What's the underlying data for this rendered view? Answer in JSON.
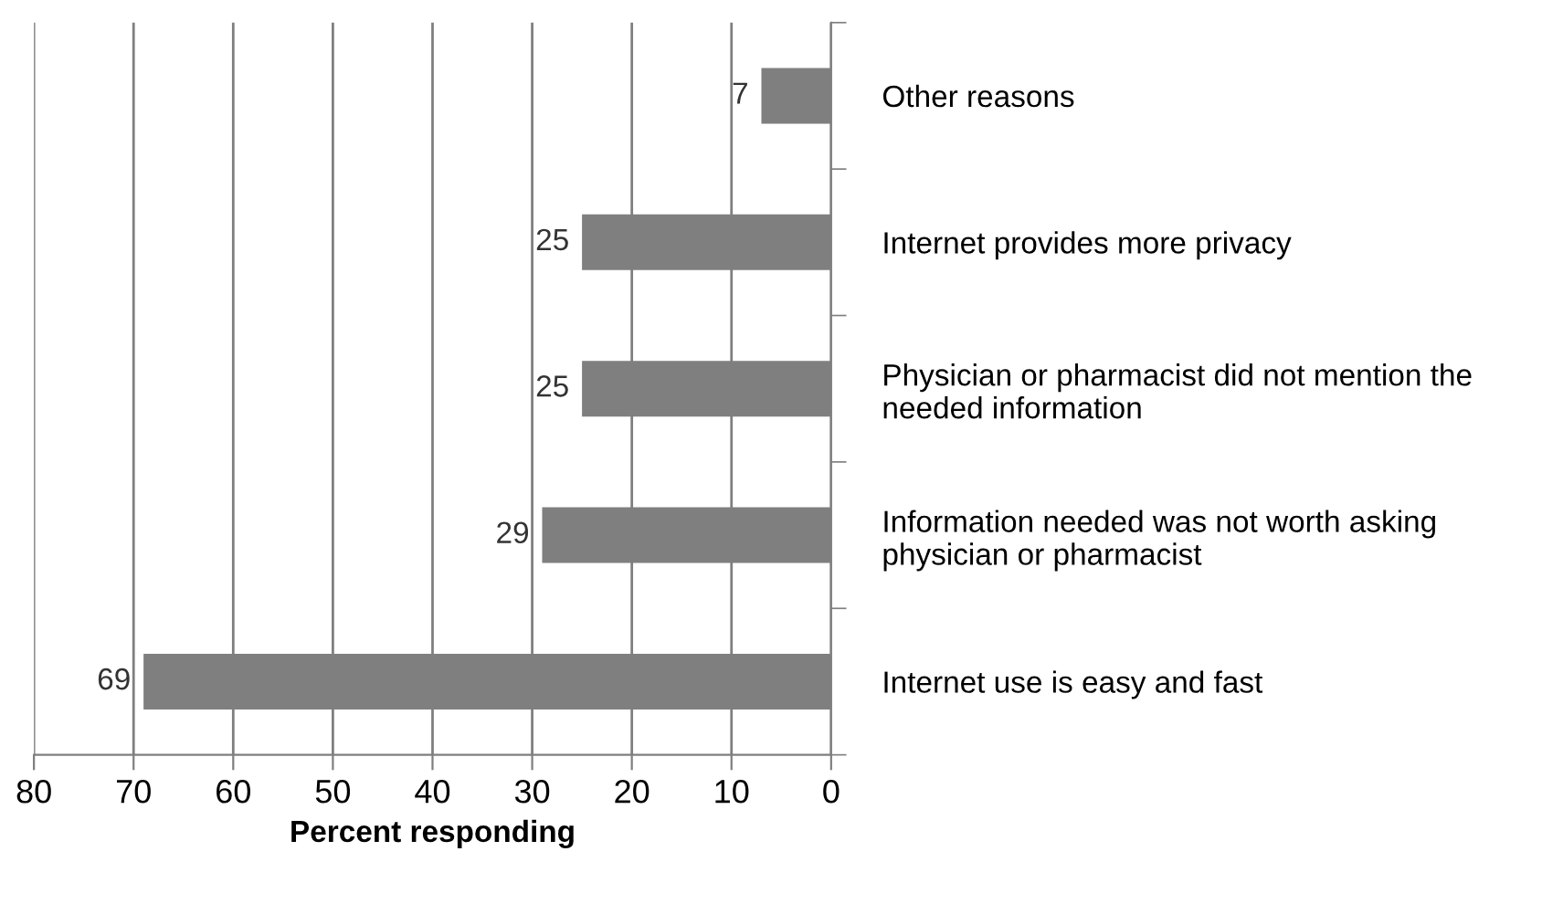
{
  "chart_data": {
    "type": "bar",
    "orientation": "horizontal",
    "xlabel": "Percent responding",
    "categories": [
      "Other reasons",
      "Internet provides more privacy",
      "Physician or pharmacist did not mention the\nneeded information",
      "Information needed was not worth asking\nphysician or pharmacist",
      "Internet use is easy and fast"
    ],
    "values": [
      7,
      25,
      25,
      29,
      69
    ],
    "color": "#7f7f7f",
    "xlim": [
      80,
      0
    ],
    "xticks": [
      80,
      70,
      60,
      50,
      40,
      30,
      20,
      10,
      0
    ],
    "grid": "x",
    "data_labels": true
  }
}
